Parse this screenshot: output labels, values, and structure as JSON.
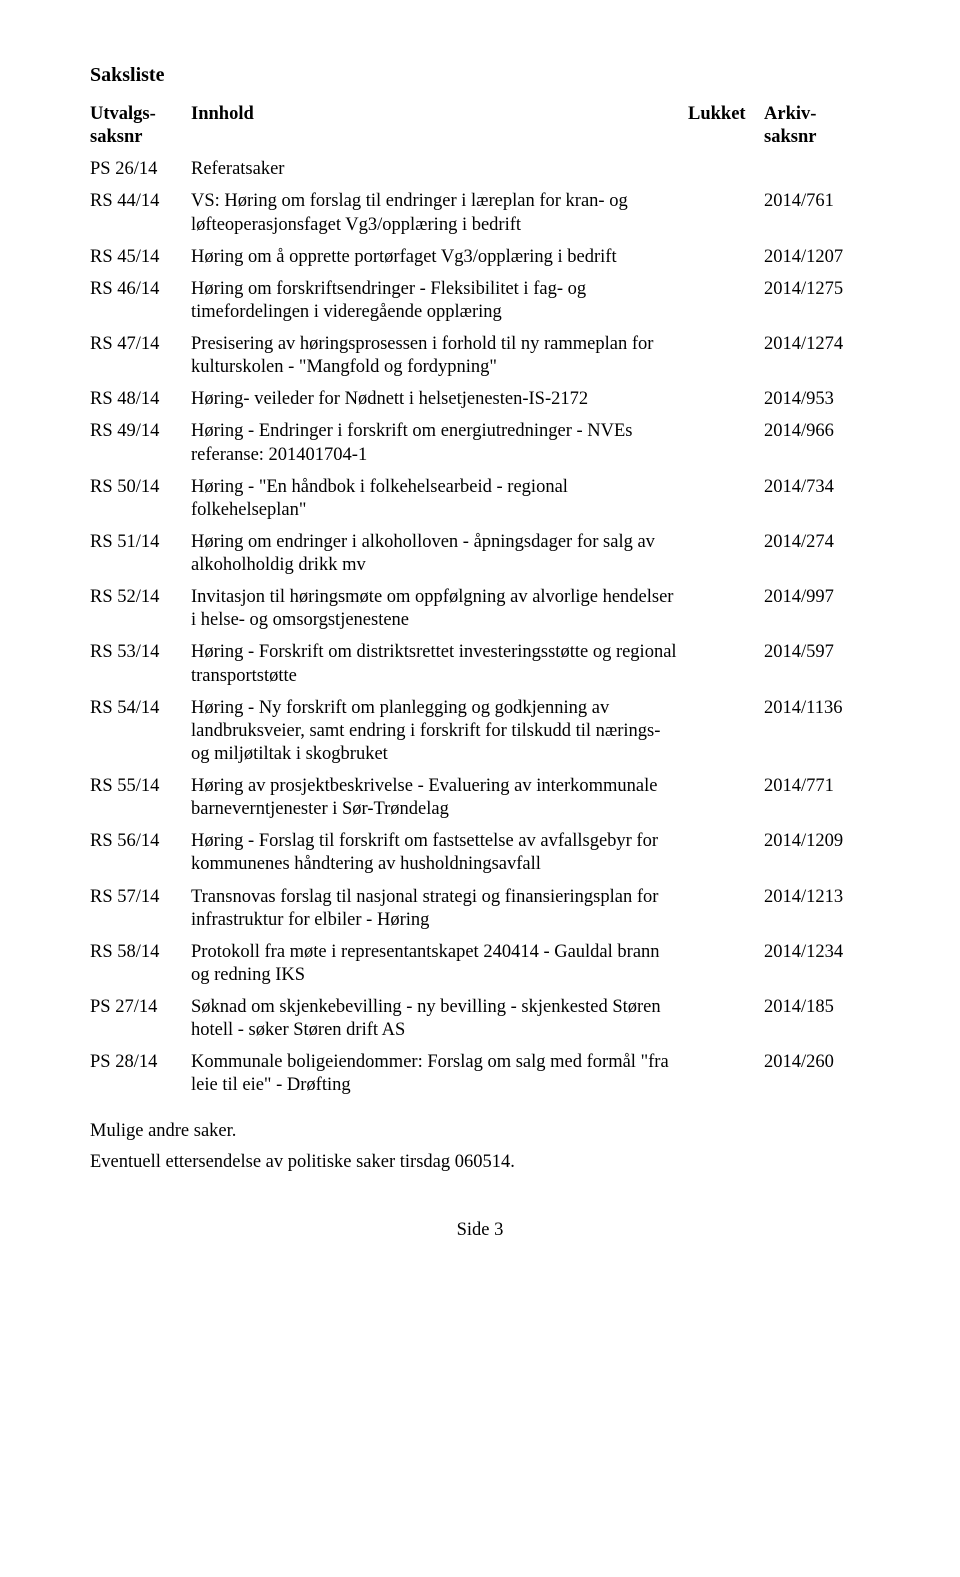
{
  "heading": "Saksliste",
  "columns": {
    "ref1": "Utvalgs-",
    "ref2": "saksnr",
    "innhold": "Innhold",
    "lukket": "Lukket",
    "arkiv1": "Arkiv-",
    "arkiv2": "saksnr"
  },
  "rows": [
    {
      "ref": "PS 26/14",
      "title": "Referatsaker",
      "arkiv": ""
    },
    {
      "ref": "RS 44/14",
      "title": "VS: Høring om forslag til endringer i læreplan for kran- og løfteoperasjonsfaget Vg3/opplæring i bedrift",
      "arkiv": "2014/761"
    },
    {
      "ref": "RS 45/14",
      "title": "Høring om å opprette portørfaget Vg3/opplæring i bedrift",
      "arkiv": "2014/1207"
    },
    {
      "ref": "RS 46/14",
      "title": "Høring om forskriftsendringer - Fleksibilitet i fag- og timefordelingen i videregående opplæring",
      "arkiv": "2014/1275"
    },
    {
      "ref": "RS 47/14",
      "title": "Presisering av høringsprosessen i forhold til ny rammeplan for kulturskolen - \"Mangfold og fordypning\"",
      "arkiv": "2014/1274"
    },
    {
      "ref": "RS 48/14",
      "title": "Høring- veileder for Nødnett i helsetjenesten-IS-2172",
      "arkiv": "2014/953"
    },
    {
      "ref": "RS 49/14",
      "title": "Høring - Endringer i forskrift om energiutredninger - NVEs referanse: 201401704-1",
      "arkiv": "2014/966"
    },
    {
      "ref": "RS 50/14",
      "title": "Høring -  \"En håndbok i folkehelsearbeid - regional folkehelseplan\"",
      "arkiv": "2014/734"
    },
    {
      "ref": "RS 51/14",
      "title": "Høring om endringer i alkoholloven - åpningsdager for salg av alkoholholdig drikk mv",
      "arkiv": "2014/274"
    },
    {
      "ref": "RS 52/14",
      "title": "Invitasjon til høringsmøte om oppfølgning av alvorlige hendelser i helse- og omsorgstjenestene",
      "arkiv": "2014/997"
    },
    {
      "ref": "RS 53/14",
      "title": "Høring - Forskrift om distriktsrettet investeringsstøtte og regional transportstøtte",
      "arkiv": "2014/597"
    },
    {
      "ref": "RS 54/14",
      "title": "Høring - Ny forskrift om planlegging og godkjenning av landbruksveier, samt endring i forskrift for tilskudd til nærings- og miljøtiltak i skogbruket",
      "arkiv": "2014/1136"
    },
    {
      "ref": "RS 55/14",
      "title": "Høring av prosjektbeskrivelse - Evaluering av interkommunale barneverntjenester i Sør-Trøndelag",
      "arkiv": "2014/771"
    },
    {
      "ref": "RS 56/14",
      "title": "Høring - Forslag til forskrift om fastsettelse av avfallsgebyr for kommunenes håndtering av husholdningsavfall",
      "arkiv": "2014/1209"
    },
    {
      "ref": "RS 57/14",
      "title": "Transnovas forslag til nasjonal strategi og finansieringsplan for infrastruktur for elbiler - Høring",
      "arkiv": "2014/1213"
    },
    {
      "ref": "RS 58/14",
      "title": "Protokoll fra møte i representantskapet 240414 - Gauldal brann og redning IKS",
      "arkiv": "2014/1234"
    },
    {
      "ref": "PS 27/14",
      "title": "Søknad om skjenkebevilling - ny bevilling - skjenkested Støren hotell - søker Støren drift AS",
      "arkiv": "2014/185"
    },
    {
      "ref": "PS 28/14",
      "title": "Kommunale boligeiendommer: Forslag om salg med formål \"fra leie til eie\" - Drøfting",
      "arkiv": "2014/260"
    }
  ],
  "footer1": "Mulige andre saker.",
  "footer2": "Eventuell ettersendelse av politiske saker tirsdag 060514.",
  "pagenum": "Side 3"
}
